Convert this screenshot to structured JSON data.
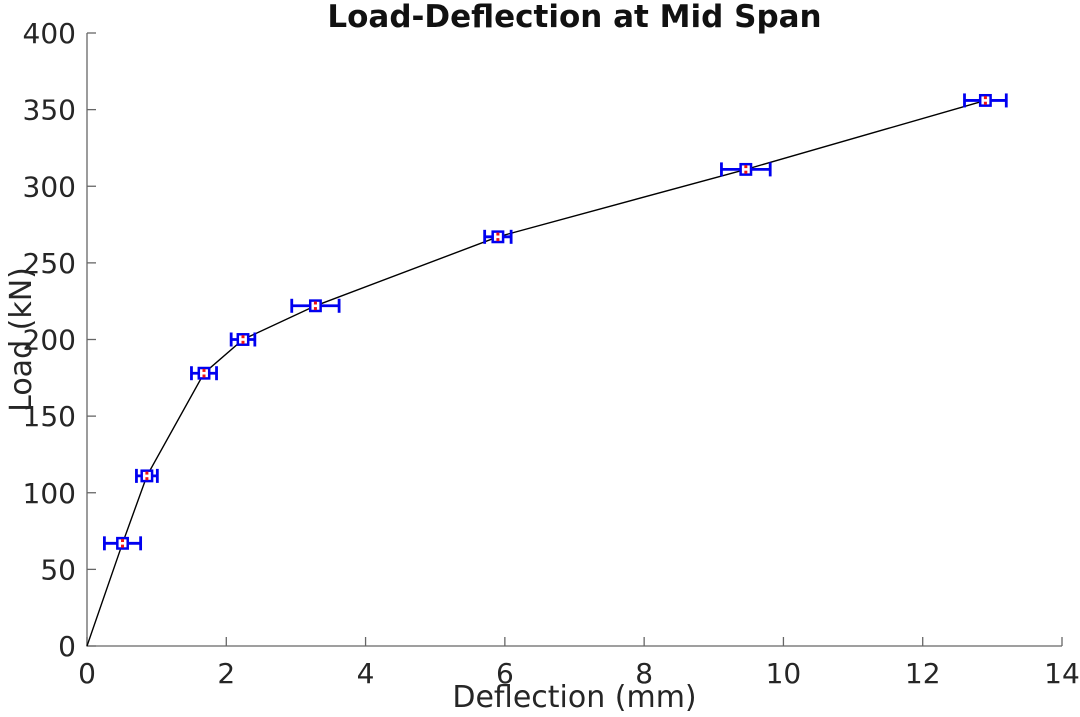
{
  "chart_data": {
    "type": "scatter",
    "title": "Load-Deflection at Mid Span",
    "xlabel": "Deflection (mm)",
    "ylabel": "Load (kN)",
    "xlim": [
      0,
      14
    ],
    "ylim": [
      0,
      400
    ],
    "xticks": [
      0,
      2,
      4,
      6,
      8,
      10,
      12,
      14
    ],
    "yticks": [
      0,
      50,
      100,
      150,
      200,
      250,
      300,
      350,
      400
    ],
    "grid": false,
    "legend": "none",
    "axis_color": "#666666",
    "series": [
      {
        "name": "load-deflection-midspan",
        "x": [
          0.51,
          0.86,
          1.68,
          2.24,
          3.28,
          5.9,
          9.46,
          12.9
        ],
        "y": [
          67,
          111,
          178,
          200,
          222,
          267,
          311,
          356
        ],
        "xerr": [
          0.26,
          0.15,
          0.18,
          0.17,
          0.34,
          0.19,
          0.35,
          0.3
        ],
        "line_starts_at_origin": true,
        "line_color": "#000000",
        "marker": "open-square",
        "marker_color": "#0000f0",
        "marker_center_color": "#f01414",
        "errorbar_color": "#0000f0"
      }
    ]
  }
}
